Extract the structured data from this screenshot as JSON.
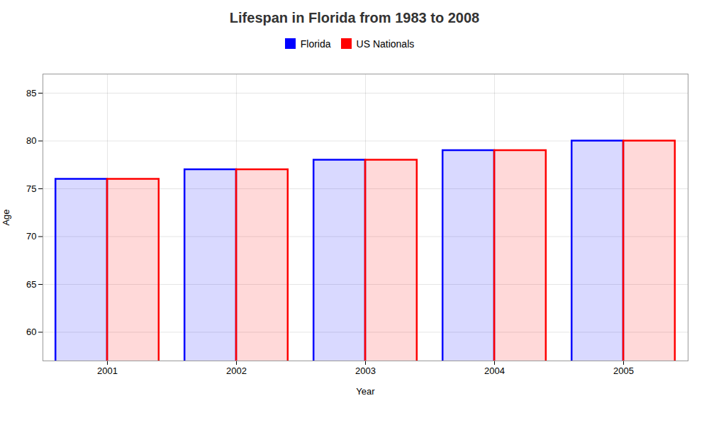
{
  "chart_data": {
    "type": "bar",
    "title": "Lifespan in Florida from 1983 to 2008",
    "xlabel": "Year",
    "ylabel": "Age",
    "categories": [
      "2001",
      "2002",
      "2003",
      "2004",
      "2005"
    ],
    "series": [
      {
        "name": "Florida",
        "color": "#0000ff",
        "values": [
          76,
          77,
          78,
          79,
          80
        ]
      },
      {
        "name": "US Nationals",
        "color": "#ff0000",
        "values": [
          76,
          77,
          78,
          79,
          80
        ]
      }
    ],
    "ylim": [
      57,
      87
    ],
    "yticks": [
      60,
      65,
      70,
      75,
      80,
      85
    ],
    "grid": true,
    "legend": "top"
  }
}
